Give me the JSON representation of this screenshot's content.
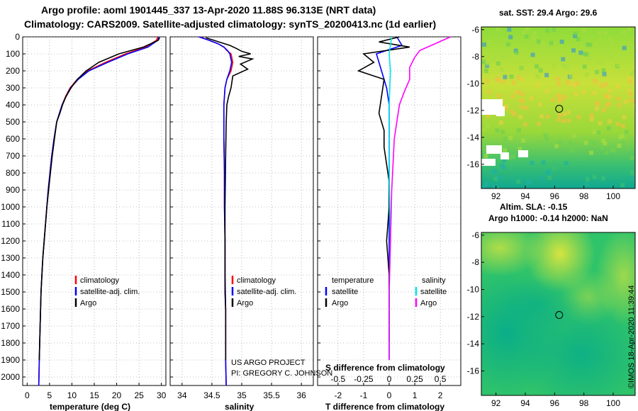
{
  "titles": {
    "line1": "Argo profile: aoml 1901445_337 13-Apr-2020 11.88S 96.313E (NRT data)",
    "line2": "Climatology: CARS2009. Satellite-adjusted climatology: synTS_20200413.nc (1d earlier)"
  },
  "colors": {
    "climatology": "#ff0000",
    "satellite": "#0000ff",
    "argo": "#000000",
    "sat_salinity": "#00e5ee",
    "argo_salinity_diff": "#ff00ff"
  },
  "depth_axis": {
    "ylim": [
      0,
      2050
    ],
    "ticks": [
      "0",
      "100",
      "200",
      "300",
      "400",
      "500",
      "600",
      "700",
      "800",
      "900",
      "1000",
      "1100",
      "1200",
      "1300",
      "1400",
      "1500",
      "1600",
      "1700",
      "1800",
      "1900",
      "2000"
    ]
  },
  "credits": {
    "project": "US ARGO PROJECT",
    "pi": "PI: GREGORY C. JOHNSON",
    "imos": "©IMOS 18-Apr-2020 11:39:44"
  },
  "chart_data": [
    {
      "type": "line",
      "xlabel": "temperature (deg C)",
      "ylabel": "",
      "xlim": [
        -1,
        31
      ],
      "xticks": [
        "0",
        "5",
        "10",
        "15",
        "20",
        "25",
        "30"
      ],
      "legend": {
        "placement": "bottom-right",
        "entries": [
          "climatology",
          "satellite-adj. clim.",
          "Argo"
        ]
      },
      "series": [
        {
          "name": "climatology",
          "color": "#ff0000",
          "x": [
            29.2,
            28.9,
            26.5,
            22.0,
            17.5,
            13.5,
            11.2,
            9.6,
            8.6,
            7.8,
            7.2,
            6.6,
            6.0,
            5.5,
            5.1,
            4.7,
            4.4,
            4.1,
            3.8,
            3.5,
            3.3,
            3.1,
            2.9,
            2.7,
            2.6
          ],
          "y": [
            0,
            20,
            60,
            100,
            150,
            200,
            250,
            300,
            350,
            400,
            450,
            500,
            600,
            700,
            800,
            900,
            1000,
            1100,
            1200,
            1300,
            1400,
            1500,
            1700,
            1900,
            2050
          ]
        },
        {
          "name": "satellite-adj. clim.",
          "color": "#0000ff",
          "x": [
            29.5,
            29.2,
            27.0,
            22.5,
            18.0,
            13.8,
            11.4,
            9.7,
            8.7,
            7.8,
            7.2,
            6.6,
            6.0,
            5.5,
            5.1,
            4.7,
            4.4,
            4.1,
            3.8,
            3.5,
            3.3,
            3.1,
            2.9,
            2.7,
            2.6
          ],
          "y": [
            0,
            20,
            60,
            100,
            150,
            200,
            250,
            300,
            350,
            400,
            450,
            500,
            600,
            700,
            800,
            900,
            1000,
            1100,
            1200,
            1300,
            1400,
            1500,
            1700,
            1900,
            2050
          ]
        },
        {
          "name": "Argo",
          "color": "#000000",
          "x": [
            29.6,
            29.3,
            26.0,
            20.5,
            16.0,
            13.2,
            11.2,
            9.8,
            8.7,
            7.9,
            7.3,
            6.6,
            6.1,
            5.6,
            5.2,
            4.8,
            4.4,
            4.1,
            3.8,
            3.5,
            3.3,
            3.1,
            2.9,
            2.7
          ],
          "y": [
            5,
            20,
            60,
            100,
            150,
            200,
            250,
            300,
            350,
            400,
            450,
            500,
            600,
            700,
            800,
            900,
            1000,
            1100,
            1200,
            1300,
            1400,
            1500,
            1700,
            1900
          ]
        }
      ]
    },
    {
      "type": "line",
      "xlabel": "salinity",
      "ylabel": "",
      "xlim": [
        33.8,
        36.2
      ],
      "xticks": [
        "34",
        "34.5",
        "35",
        "35.5",
        "36"
      ],
      "legend": {
        "placement": "bottom-right",
        "entries": [
          "climatology",
          "satellite-adj. clim.",
          "Argo"
        ]
      },
      "series": [
        {
          "name": "climatology",
          "color": "#ff0000",
          "x": [
            34.3,
            34.45,
            34.6,
            34.7,
            34.75,
            34.82,
            34.85,
            34.82,
            34.75,
            34.72,
            34.71,
            34.7,
            34.7,
            34.7,
            34.71,
            34.71,
            34.72,
            34.72,
            34.72,
            34.73,
            34.73,
            34.73,
            34.74
          ],
          "y": [
            0,
            20,
            40,
            60,
            80,
            100,
            150,
            200,
            250,
            300,
            350,
            400,
            500,
            600,
            800,
            1000,
            1200,
            1400,
            1500,
            1600,
            1800,
            1900,
            2050
          ]
        },
        {
          "name": "satellite-adj. clim.",
          "color": "#0000ff",
          "x": [
            34.28,
            34.45,
            34.6,
            34.7,
            34.76,
            34.8,
            34.83,
            34.8,
            34.75,
            34.72,
            34.71,
            34.7,
            34.7,
            34.7,
            34.71,
            34.71,
            34.72,
            34.72,
            34.72,
            34.73,
            34.73,
            34.73,
            34.74
          ],
          "y": [
            0,
            20,
            40,
            60,
            80,
            100,
            150,
            200,
            250,
            300,
            350,
            400,
            500,
            600,
            800,
            1000,
            1200,
            1400,
            1500,
            1600,
            1800,
            1900,
            2050
          ]
        },
        {
          "name": "Argo",
          "color": "#000000",
          "x": [
            34.4,
            34.62,
            34.8,
            34.92,
            35.0,
            35.15,
            34.95,
            35.18,
            34.98,
            35.1,
            34.85,
            34.82,
            34.78,
            34.75,
            34.74,
            34.73,
            34.72,
            34.72,
            34.72,
            34.73,
            34.73
          ],
          "y": [
            5,
            30,
            50,
            70,
            85,
            100,
            115,
            130,
            160,
            190,
            230,
            300,
            350,
            400,
            500,
            700,
            1000,
            1200,
            1400,
            1600,
            1900
          ]
        }
      ]
    },
    {
      "type": "line",
      "xlabel": "T difference from climatology",
      "xlabel_top": "S difference from climatology",
      "xlim": [
        -2.8,
        2.8
      ],
      "xticks": [
        "-2",
        "-1",
        "0",
        "1",
        "2"
      ],
      "xticks_top": [
        "-0.5",
        "-0.25",
        "0",
        "0.25",
        "0.5"
      ],
      "legend": {
        "placement": "bottom",
        "entries": [
          "temperature",
          "satellite",
          "Argo",
          "salinity",
          "satellite",
          "Argo"
        ]
      },
      "series": [
        {
          "name": "satellite",
          "color": "#0000ff",
          "x": [
            0.3,
            0.5,
            -0.5,
            -0.3,
            -0.1,
            0.0,
            0.0,
            0.0,
            0.0,
            0.0,
            0.0,
            0.0,
            0.0
          ],
          "y": [
            0,
            50,
            100,
            200,
            300,
            400,
            600,
            800,
            1000,
            1200,
            1500,
            1800,
            1900
          ]
        },
        {
          "name": "Argo",
          "color": "#000000",
          "x": [
            0.4,
            -0.4,
            0.8,
            -1.0,
            -0.6,
            -1.2,
            -0.2,
            -0.3,
            -0.4,
            -0.2,
            -0.2,
            -0.1,
            0.0,
            0.0,
            -0.1,
            0.0,
            0.0,
            0.0
          ],
          "y": [
            0,
            30,
            60,
            100,
            150,
            200,
            250,
            350,
            450,
            550,
            650,
            750,
            850,
            1000,
            1200,
            1400,
            1600,
            1800
          ]
        },
        {
          "name": "satellite",
          "color": "#00e5ee",
          "x": [
            0.1,
            0.0,
            0.05,
            0.0,
            0.0,
            0.05,
            0.0,
            0.0,
            0.0
          ],
          "y": [
            0,
            100,
            200,
            400,
            800,
            1200,
            1500,
            1800,
            1900
          ]
        },
        {
          "name": "Argo",
          "color": "#ff00ff",
          "x": [
            2.4,
            1.8,
            1.2,
            1.0,
            0.8,
            0.8,
            0.6,
            0.4,
            0.2,
            0.1,
            0.05,
            0.0,
            0.0,
            0.0
          ],
          "y": [
            0,
            40,
            80,
            120,
            180,
            250,
            320,
            400,
            600,
            900,
            1200,
            1500,
            1700,
            1900
          ]
        }
      ]
    }
  ],
  "maps": [
    {
      "title": "sat. SST: 29.4 Argo: 29.6",
      "yticks": [
        "-6",
        "-8",
        "-10",
        "-12",
        "-14",
        "-16"
      ],
      "xticks": [
        "92",
        "94",
        "96",
        "98",
        "100"
      ],
      "xlim": [
        91.0,
        101.5
      ],
      "ylim": [
        -17.8,
        -5.8
      ],
      "float_lon": 96.313,
      "float_lat": -11.88
    },
    {
      "title_line1": "Altim. SLA: -0.15",
      "title_line2": "Argo h1000: -0.14 h2000: NaN",
      "yticks": [
        "-6",
        "-8",
        "-10",
        "-12",
        "-14",
        "-16"
      ],
      "xticks": [
        "92",
        "94",
        "96",
        "98",
        "100"
      ],
      "xlim": [
        91.0,
        101.5
      ],
      "ylim": [
        -17.8,
        -5.8
      ],
      "float_lon": 96.313,
      "float_lat": -11.88
    }
  ]
}
